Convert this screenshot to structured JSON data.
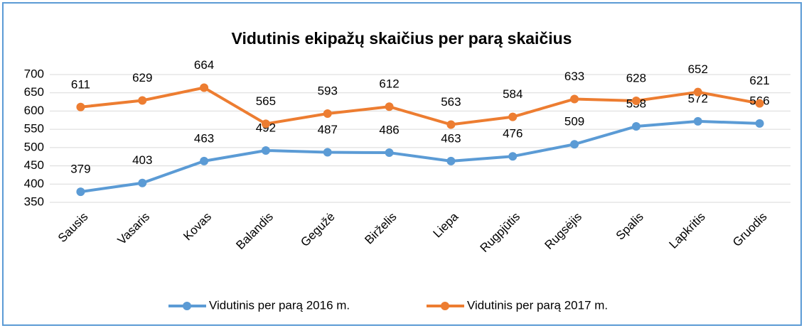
{
  "chart_data": {
    "type": "line",
    "title": "Vidutinis ekipažų skaičius per parą skaičius",
    "categories": [
      "Sausis",
      "Vasaris",
      "Kovas",
      "Balandis",
      "Gegužė",
      "Birželis",
      "Liepa",
      "Rugpjūtis",
      "Rugsėjis",
      "Spalis",
      "Lapkritis",
      "Gruodis"
    ],
    "series": [
      {
        "name": "Vidutinis per parą 2016 m.",
        "color": "#5b9bd5",
        "values": [
          379,
          403,
          463,
          492,
          487,
          486,
          463,
          476,
          509,
          558,
          572,
          566
        ]
      },
      {
        "name": "Vidutinis per parą 2017 m.",
        "color": "#ed7d31",
        "values": [
          611,
          629,
          664,
          565,
          593,
          612,
          563,
          584,
          633,
          628,
          652,
          621
        ]
      }
    ],
    "ylim": [
      350,
      700
    ],
    "yticks": [
      350,
      400,
      450,
      500,
      550,
      600,
      650,
      700
    ],
    "grid": true,
    "legend": "bottom"
  }
}
